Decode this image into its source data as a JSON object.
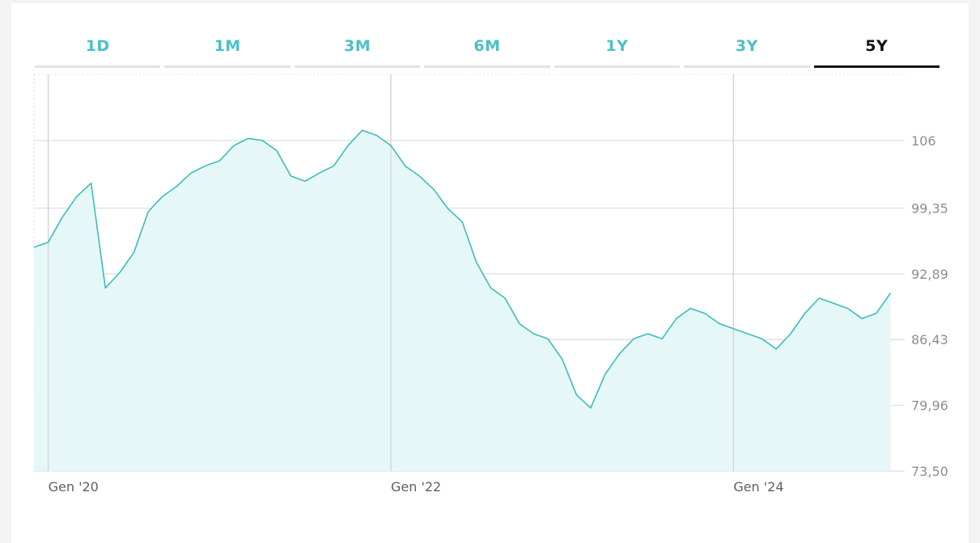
{
  "tabs": [
    {
      "label": "1D",
      "active": false
    },
    {
      "label": "1M",
      "active": false
    },
    {
      "label": "3M",
      "active": false
    },
    {
      "label": "6M",
      "active": false
    },
    {
      "label": "1Y",
      "active": false
    },
    {
      "label": "3Y",
      "active": false
    },
    {
      "label": "5Y",
      "active": true
    }
  ],
  "colors": {
    "accent": "#4cbfc7",
    "line": "#3dbcbc",
    "fill": "#e6f7f7",
    "active_tab": "#111111"
  },
  "chart_data": {
    "type": "area",
    "title": "",
    "xlabel": "",
    "ylabel": "",
    "x_tick_labels": [
      "Gen '20",
      "Gen '22",
      "Gen '24"
    ],
    "x_ticks": [
      "2020-01",
      "2022-01",
      "2024-01"
    ],
    "y_tick_labels": [
      "106",
      "99,35",
      "92,89",
      "86,43",
      "79,96",
      "73,50"
    ],
    "y_ticks": [
      106,
      99.35,
      92.89,
      86.43,
      79.96,
      73.5
    ],
    "xlim": [
      "2019-12",
      "2025-01"
    ],
    "ylim": [
      73.5,
      112.5
    ],
    "grid": true,
    "legend": "none",
    "series": [
      {
        "x": [
          "2019-12",
          "2020-01",
          "2020-02",
          "2020-03",
          "2020-04",
          "2020-05",
          "2020-06",
          "2020-07",
          "2020-08",
          "2020-09",
          "2020-10",
          "2020-11",
          "2020-12",
          "2021-01",
          "2021-02",
          "2021-03",
          "2021-04",
          "2021-05",
          "2021-06",
          "2021-07",
          "2021-08",
          "2021-09",
          "2021-10",
          "2021-11",
          "2021-12",
          "2022-01",
          "2022-02",
          "2022-03",
          "2022-04",
          "2022-05",
          "2022-06",
          "2022-07",
          "2022-08",
          "2022-09",
          "2022-10",
          "2022-11",
          "2022-12",
          "2023-01",
          "2023-02",
          "2023-03",
          "2023-04",
          "2023-05",
          "2023-06",
          "2023-07",
          "2023-08",
          "2023-09",
          "2023-10",
          "2023-11",
          "2023-12",
          "2024-01",
          "2024-02",
          "2024-03",
          "2024-04",
          "2024-05",
          "2024-06",
          "2024-07",
          "2024-08",
          "2024-09",
          "2024-10",
          "2024-11",
          "2024-12"
        ],
        "values": [
          95.5,
          96.0,
          98.5,
          100.5,
          101.8,
          91.5,
          93.0,
          95.0,
          99.0,
          100.5,
          101.5,
          102.8,
          103.5,
          104.0,
          105.5,
          106.2,
          106.0,
          105.0,
          102.5,
          102.0,
          102.8,
          103.5,
          105.5,
          107.0,
          106.5,
          105.5,
          103.5,
          102.5,
          101.2,
          99.3,
          98.0,
          94.0,
          91.5,
          90.5,
          88.0,
          87.0,
          86.5,
          84.5,
          81.0,
          79.7,
          83.0,
          85.0,
          86.5,
          87.0,
          86.5,
          88.5,
          89.5,
          89.0,
          88.0,
          87.5,
          87.0,
          86.5,
          85.5,
          87.0,
          89.0,
          90.5,
          90.0,
          89.5,
          88.5,
          89.0,
          91.0
        ]
      }
    ]
  }
}
